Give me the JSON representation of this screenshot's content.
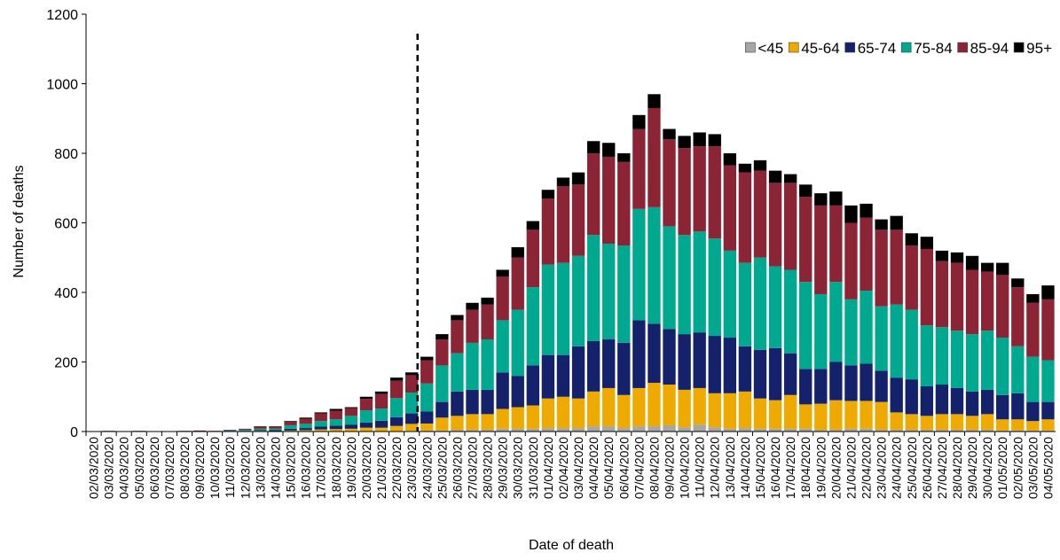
{
  "chart_data": {
    "type": "stacked-bar",
    "y_label": "Number of deaths",
    "x_label": "Date of death",
    "categories": [
      "02/03/2020",
      "03/03/2020",
      "04/03/2020",
      "05/03/2020",
      "06/03/2020",
      "07/03/2020",
      "08/03/2020",
      "09/03/2020",
      "10/03/2020",
      "11/03/2020",
      "12/03/2020",
      "13/03/2020",
      "14/03/2020",
      "15/03/2020",
      "16/03/2020",
      "17/03/2020",
      "18/03/2020",
      "19/03/2020",
      "20/03/2020",
      "21/03/2020",
      "22/03/2020",
      "23/03/2020",
      "24/03/2020",
      "25/03/2020",
      "26/03/2020",
      "27/03/2020",
      "28/03/2020",
      "29/03/2020",
      "30/03/2020",
      "31/03/2020",
      "01/04/2020",
      "02/04/2020",
      "03/04/2020",
      "04/04/2020",
      "05/04/2020",
      "06/04/2020",
      "07/04/2020",
      "08/04/2020",
      "09/04/2020",
      "10/04/2020",
      "11/04/2020",
      "12/04/2020",
      "13/04/2020",
      "14/04/2020",
      "15/04/2020",
      "16/04/2020",
      "17/04/2020",
      "18/04/2020",
      "19/04/2020",
      "20/04/2020",
      "21/04/2020",
      "22/04/2020",
      "23/04/2020",
      "24/04/2020",
      "25/04/2020",
      "26/04/2020",
      "27/04/2020",
      "28/04/2020",
      "29/04/2020",
      "30/04/2020",
      "01/05/2020",
      "02/05/2020",
      "03/05/2020",
      "04/05/2020"
    ],
    "series": [
      {
        "name": "<45",
        "color": "#a6a6a6",
        "values": [
          0,
          0,
          0,
          0,
          0,
          0,
          0,
          0,
          0,
          0,
          0,
          0,
          0,
          0,
          0,
          1,
          1,
          1,
          1,
          1,
          1,
          2,
          3,
          3,
          5,
          5,
          5,
          8,
          8,
          8,
          10,
          10,
          10,
          15,
          15,
          10,
          15,
          15,
          18,
          12,
          20,
          12,
          8,
          10,
          8,
          8,
          8,
          8,
          5,
          5,
          8,
          8,
          5,
          5,
          5,
          5,
          5,
          5,
          5,
          5,
          3,
          3,
          3,
          3
        ]
      },
      {
        "name": "45-64",
        "color": "#eeaa00",
        "values": [
          0,
          0,
          0,
          0,
          0,
          0,
          0,
          0,
          0,
          1,
          1,
          2,
          1,
          3,
          4,
          5,
          6,
          7,
          10,
          10,
          15,
          20,
          20,
          37,
          40,
          45,
          45,
          57,
          62,
          67,
          85,
          90,
          85,
          100,
          110,
          95,
          110,
          125,
          117,
          108,
          105,
          98,
          102,
          105,
          87,
          82,
          97,
          70,
          75,
          85,
          80,
          80,
          80,
          50,
          45,
          40,
          45,
          45,
          40,
          45,
          32,
          32,
          27,
          32
        ]
      },
      {
        "name": "65-74",
        "color": "#13226b",
        "values": [
          0,
          0,
          0,
          0,
          0,
          0,
          0,
          0,
          1,
          0,
          1,
          2,
          3,
          5,
          6,
          8,
          10,
          12,
          15,
          20,
          25,
          30,
          35,
          45,
          70,
          70,
          70,
          105,
          90,
          115,
          125,
          120,
          150,
          145,
          140,
          150,
          195,
          170,
          160,
          160,
          160,
          165,
          160,
          130,
          140,
          150,
          120,
          102,
          100,
          110,
          102,
          107,
          90,
          100,
          100,
          85,
          85,
          75,
          70,
          70,
          70,
          75,
          55,
          50
        ]
      },
      {
        "name": "75-84",
        "color": "#00a88f",
        "values": [
          0,
          1,
          0,
          0,
          0,
          0,
          0,
          1,
          0,
          2,
          3,
          4,
          4,
          10,
          12,
          16,
          18,
          25,
          35,
          35,
          55,
          60,
          80,
          105,
          110,
          135,
          145,
          150,
          190,
          225,
          260,
          265,
          260,
          305,
          275,
          280,
          320,
          335,
          295,
          285,
          290,
          280,
          250,
          240,
          265,
          235,
          240,
          250,
          215,
          230,
          190,
          210,
          185,
          210,
          200,
          175,
          165,
          165,
          165,
          170,
          165,
          135,
          130,
          120
        ]
      },
      {
        "name": "85-94",
        "color": "#8b2535",
        "values": [
          1,
          1,
          0,
          2,
          0,
          0,
          2,
          2,
          1,
          2,
          3,
          6,
          6,
          10,
          15,
          22,
          25,
          22,
          33,
          42,
          50,
          50,
          67,
          75,
          95,
          95,
          100,
          125,
          150,
          165,
          190,
          220,
          205,
          235,
          250,
          240,
          230,
          285,
          250,
          250,
          245,
          265,
          245,
          260,
          250,
          240,
          250,
          245,
          255,
          220,
          220,
          210,
          220,
          215,
          185,
          220,
          190,
          195,
          185,
          170,
          180,
          170,
          155,
          175
        ]
      },
      {
        "name": "95+",
        "color": "#000000",
        "values": [
          0,
          0,
          0,
          0,
          0,
          0,
          0,
          0,
          0,
          0,
          0,
          1,
          1,
          2,
          3,
          3,
          5,
          3,
          6,
          7,
          9,
          8,
          10,
          15,
          15,
          20,
          20,
          20,
          30,
          25,
          25,
          25,
          35,
          35,
          40,
          25,
          40,
          40,
          30,
          35,
          40,
          35,
          35,
          25,
          30,
          35,
          25,
          35,
          35,
          40,
          50,
          40,
          30,
          40,
          35,
          35,
          30,
          30,
          40,
          25,
          35,
          25,
          25,
          40
        ]
      }
    ],
    "ylim": [
      0,
      1200
    ],
    "yticks": [
      0,
      200,
      400,
      600,
      800,
      1000,
      1200
    ],
    "legend": "top-right",
    "grid": false
  }
}
